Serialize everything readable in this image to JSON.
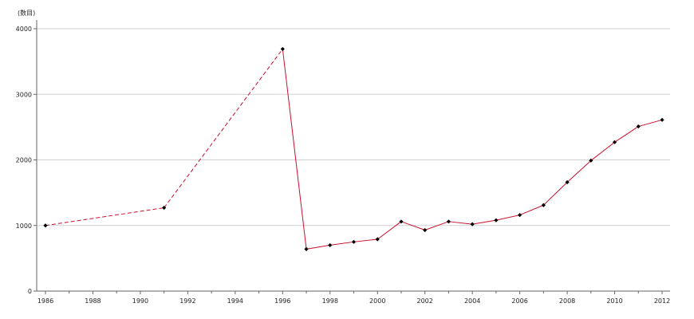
{
  "chart_data": {
    "type": "line",
    "title": "",
    "ylabel": "(数目)",
    "xlabel": "",
    "xlim": [
      1986,
      2012
    ],
    "ylim": [
      0,
      4000
    ],
    "x_ticks": [
      1986,
      1988,
      1990,
      1992,
      1994,
      1996,
      1998,
      2000,
      2002,
      2004,
      2006,
      2008,
      2010,
      2012
    ],
    "y_ticks": [
      0,
      1000,
      2000,
      3000,
      4000
    ],
    "grid": true,
    "legend": "none",
    "line_color": "#c8102e",
    "marker_color": "#000000",
    "dashed_segments": [
      [
        1986,
        1991
      ],
      [
        1991,
        1996
      ]
    ],
    "series": [
      {
        "x": [
          1986,
          1991,
          1996,
          1997,
          1998,
          1999,
          2000,
          2001,
          2002,
          2003,
          2004,
          2005,
          2006,
          2007,
          2008,
          2009,
          2010,
          2011,
          2012
        ],
        "y": [
          1000,
          1270,
          3690,
          640,
          700,
          750,
          790,
          1060,
          930,
          1060,
          1020,
          1080,
          1160,
          1310,
          1660,
          1990,
          2270,
          2510,
          2610
        ]
      }
    ]
  }
}
